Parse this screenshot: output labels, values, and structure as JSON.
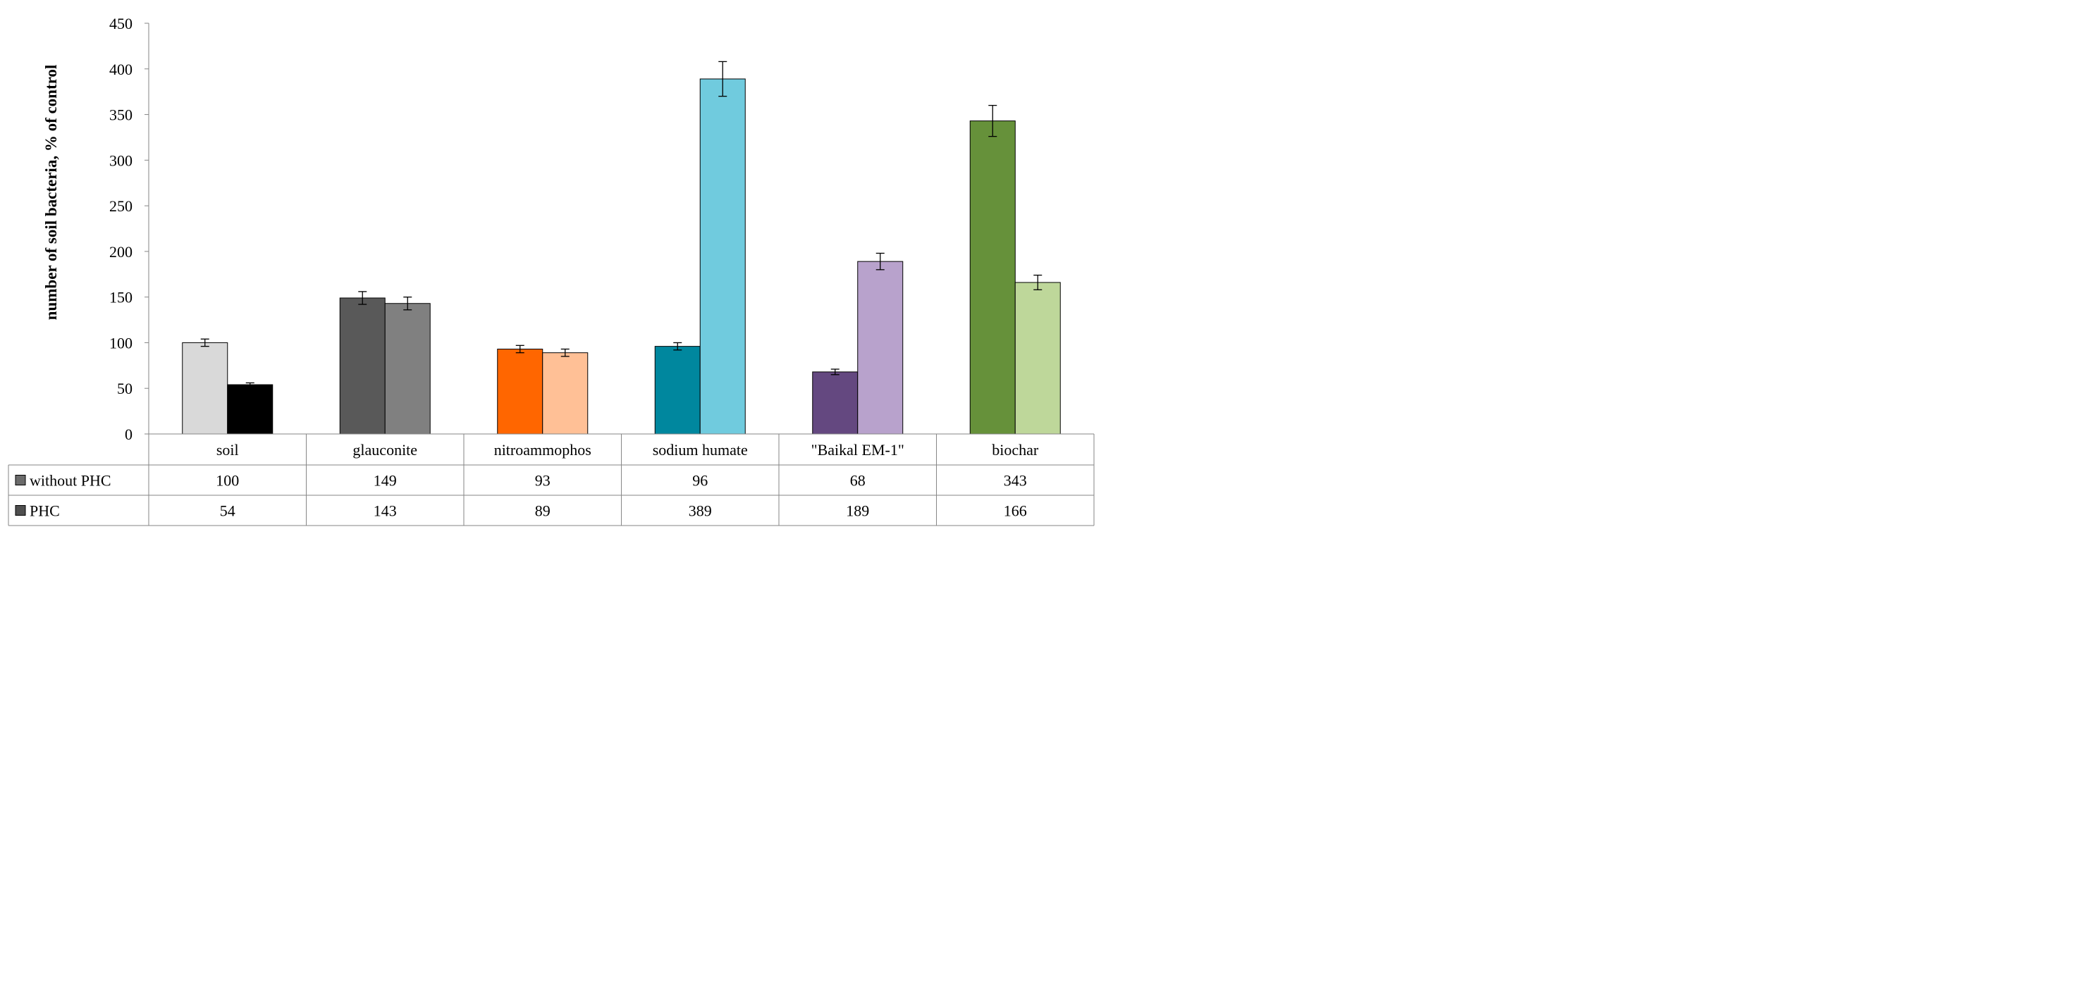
{
  "chart_data": {
    "type": "bar",
    "ylabel": "number of soil bacteria, % of control",
    "xlabel": "",
    "ylim": [
      0,
      450
    ],
    "yticks": [
      0,
      50,
      100,
      150,
      200,
      250,
      300,
      350,
      400,
      450
    ],
    "grid": false,
    "legend": "data table rows",
    "categories": [
      "soil",
      "glauconite",
      "nitroammophos",
      "sodium humate",
      "\"Baikal EM-1\"",
      "biochar"
    ],
    "series": [
      {
        "name": "without PHC",
        "values": [
          100,
          149,
          93,
          96,
          68,
          343
        ],
        "errors": [
          4,
          7,
          4,
          4,
          3,
          17
        ],
        "legend_color": "#6b6b6b",
        "bar_colors": [
          "#d9d9d9",
          "#595959",
          "#ff6600",
          "#00879e",
          "#644880",
          "#66913a"
        ]
      },
      {
        "name": "PHC",
        "values": [
          54,
          143,
          89,
          389,
          189,
          166
        ],
        "errors": [
          2,
          7,
          4,
          19,
          9,
          8
        ],
        "legend_color": "#4f4f4f",
        "bar_colors": [
          "#000000",
          "#808080",
          "#ffc096",
          "#70cbde",
          "#b8a2cc",
          "#bed79a"
        ]
      }
    ],
    "table": {
      "rows": [
        {
          "label": "without PHC",
          "values": [
            "100",
            "149",
            "93",
            "96",
            "68",
            "343"
          ]
        },
        {
          "label": "PHC",
          "values": [
            "54",
            "143",
            "89",
            "389",
            "189",
            "166"
          ]
        }
      ]
    }
  }
}
